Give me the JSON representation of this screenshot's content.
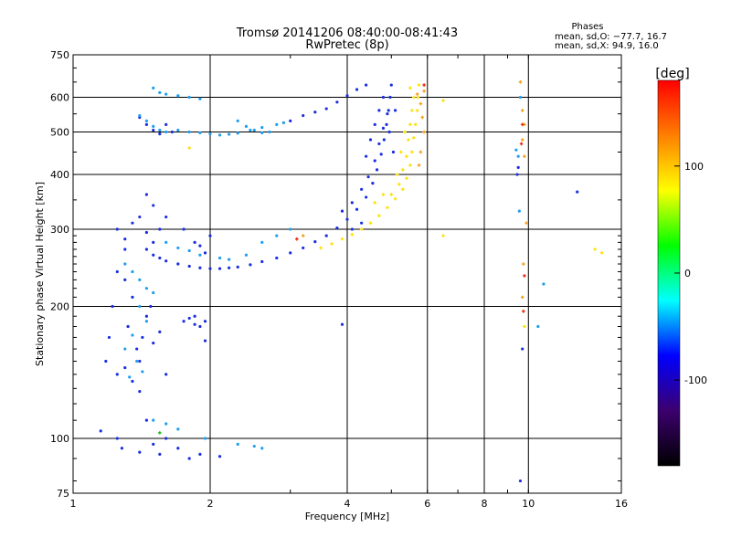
{
  "chart_data": {
    "type": "scatter",
    "title": "Tromsø 20141206 08:40:00-08:41:43",
    "subtitle": "RwPretec (8p)",
    "xlabel": "Frequency [MHz]",
    "ylabel": "Stationary phase Virtual Height [km]",
    "x_scale": "log",
    "y_scale": "log",
    "xlim": [
      1,
      16
    ],
    "ylim": [
      75,
      750
    ],
    "x_ticks": [
      1,
      2,
      4,
      6,
      8,
      10,
      16
    ],
    "x_tick_labels": [
      "1",
      "2",
      "4",
      "6",
      "8",
      "10",
      "16"
    ],
    "y_ticks": [
      75,
      100,
      200,
      300,
      400,
      500,
      600,
      750
    ],
    "y_tick_labels": [
      "75",
      "100",
      "200",
      "300",
      "400",
      "500",
      "600",
      "750"
    ],
    "grid": true,
    "info_heading": "Phases",
    "info_lines": [
      "mean, sd,O: −77.7, 16.7",
      "mean, sd,X:  94.9, 16.0"
    ],
    "colorbar": {
      "label": "[deg]",
      "range": [
        -180,
        180
      ],
      "ticks": [
        100,
        0,
        -100
      ],
      "tick_labels": [
        "100",
        "0",
        "-100"
      ],
      "colors": [
        "#ff0000",
        "#ff7f00",
        "#ffff00",
        "#00ff00",
        "#00ffff",
        "#0000ff",
        "#3c006e",
        "#000000"
      ]
    },
    "series": [
      {
        "mode": "O",
        "color": "#1a2ee0",
        "points": [
          [
            1.45,
            270
          ],
          [
            1.5,
            262
          ],
          [
            1.55,
            258
          ],
          [
            1.6,
            254
          ],
          [
            1.7,
            250
          ],
          [
            1.8,
            247
          ],
          [
            1.9,
            245
          ],
          [
            2.0,
            244
          ],
          [
            2.1,
            244
          ],
          [
            2.2,
            245
          ],
          [
            2.3,
            246
          ],
          [
            2.45,
            249
          ],
          [
            2.6,
            253
          ],
          [
            2.8,
            258
          ],
          [
            3.0,
            265
          ],
          [
            3.2,
            272
          ],
          [
            3.4,
            281
          ],
          [
            3.6,
            290
          ],
          [
            3.8,
            302
          ],
          [
            4.0,
            316
          ],
          [
            4.2,
            333
          ],
          [
            4.4,
            355
          ],
          [
            4.55,
            382
          ],
          [
            4.65,
            410
          ],
          [
            4.75,
            445
          ],
          [
            4.82,
            480
          ],
          [
            4.88,
            520
          ],
          [
            4.93,
            560
          ],
          [
            4.97,
            600
          ],
          [
            5.0,
            640
          ],
          [
            3.9,
            330
          ],
          [
            4.1,
            345
          ],
          [
            4.3,
            370
          ],
          [
            4.45,
            395
          ],
          [
            4.6,
            430
          ],
          [
            4.7,
            470
          ],
          [
            4.8,
            510
          ],
          [
            4.9,
            550
          ],
          [
            4.4,
            440
          ],
          [
            4.5,
            480
          ],
          [
            4.6,
            520
          ],
          [
            4.7,
            560
          ],
          [
            4.8,
            600
          ],
          [
            4.95,
            500
          ],
          [
            5.05,
            450
          ],
          [
            5.1,
            560
          ],
          [
            4.3,
            310
          ],
          [
            4.1,
            300
          ],
          [
            3.0,
            530
          ],
          [
            3.2,
            545
          ],
          [
            3.4,
            555
          ],
          [
            3.6,
            565
          ],
          [
            3.8,
            585
          ],
          [
            4.0,
            605
          ],
          [
            4.2,
            625
          ],
          [
            4.4,
            640
          ],
          [
            1.4,
            540
          ],
          [
            1.45,
            520
          ],
          [
            1.5,
            505
          ],
          [
            1.55,
            495
          ],
          [
            1.6,
            520
          ],
          [
            1.65,
            500
          ],
          [
            1.3,
            230
          ],
          [
            1.35,
            210
          ],
          [
            1.32,
            180
          ],
          [
            1.38,
            160
          ],
          [
            1.4,
            150
          ],
          [
            1.42,
            170
          ],
          [
            1.3,
            145
          ],
          [
            1.35,
            135
          ],
          [
            1.4,
            128
          ],
          [
            1.5,
            165
          ],
          [
            1.55,
            175
          ],
          [
            1.6,
            140
          ],
          [
            1.45,
            190
          ],
          [
            1.48,
            200
          ],
          [
            1.3,
            270
          ],
          [
            1.25,
            240
          ],
          [
            1.22,
            200
          ],
          [
            1.2,
            170
          ],
          [
            1.18,
            150
          ],
          [
            1.25,
            140
          ],
          [
            1.28,
            95
          ],
          [
            1.4,
            93
          ],
          [
            1.5,
            97
          ],
          [
            1.55,
            92
          ],
          [
            1.6,
            100
          ],
          [
            1.7,
            95
          ],
          [
            1.8,
            90
          ],
          [
            1.9,
            92
          ],
          [
            2.1,
            91
          ],
          [
            1.15,
            104
          ],
          [
            1.25,
            100
          ],
          [
            1.45,
            110
          ],
          [
            1.75,
            185
          ],
          [
            1.8,
            188
          ],
          [
            1.85,
            182
          ],
          [
            1.9,
            180
          ],
          [
            1.95,
            185
          ],
          [
            1.85,
            190
          ],
          [
            1.25,
            300
          ],
          [
            1.3,
            285
          ],
          [
            1.35,
            310
          ],
          [
            1.45,
            295
          ],
          [
            1.5,
            280
          ],
          [
            1.55,
            300
          ],
          [
            1.6,
            320
          ],
          [
            1.5,
            340
          ],
          [
            1.45,
            360
          ],
          [
            1.4,
            320
          ],
          [
            1.75,
            300
          ],
          [
            1.85,
            280
          ],
          [
            1.95,
            265
          ],
          [
            2.0,
            290
          ],
          [
            1.9,
            275
          ],
          [
            9.6,
            80
          ],
          [
            9.5,
            415
          ],
          [
            9.45,
            400
          ],
          [
            9.7,
            160
          ],
          [
            12.8,
            365
          ],
          [
            3.9,
            182
          ],
          [
            1.95,
            167
          ]
        ]
      },
      {
        "mode": "O",
        "color": "#1e9ef0",
        "points": [
          [
            1.5,
            630
          ],
          [
            1.55,
            615
          ],
          [
            1.6,
            610
          ],
          [
            1.7,
            605
          ],
          [
            1.8,
            600
          ],
          [
            1.9,
            595
          ],
          [
            1.4,
            545
          ],
          [
            1.45,
            530
          ],
          [
            1.5,
            515
          ],
          [
            1.55,
            505
          ],
          [
            1.6,
            500
          ],
          [
            1.7,
            505
          ],
          [
            1.8,
            500
          ],
          [
            1.9,
            498
          ],
          [
            2.0,
            495
          ],
          [
            2.1,
            492
          ],
          [
            2.2,
            494
          ],
          [
            2.3,
            497
          ],
          [
            2.45,
            505
          ],
          [
            2.6,
            512
          ],
          [
            2.8,
            520
          ],
          [
            2.9,
            525
          ],
          [
            1.3,
            250
          ],
          [
            1.35,
            240
          ],
          [
            1.4,
            230
          ],
          [
            1.45,
            220
          ],
          [
            1.5,
            215
          ],
          [
            1.4,
            200
          ],
          [
            1.45,
            185
          ],
          [
            1.35,
            172
          ],
          [
            1.3,
            160
          ],
          [
            1.38,
            150
          ],
          [
            1.42,
            142
          ],
          [
            1.33,
            138
          ],
          [
            1.5,
            110
          ],
          [
            1.6,
            108
          ],
          [
            1.7,
            105
          ],
          [
            1.95,
            100
          ],
          [
            2.3,
            97
          ],
          [
            2.5,
            96
          ],
          [
            1.6,
            280
          ],
          [
            1.7,
            272
          ],
          [
            1.8,
            268
          ],
          [
            1.9,
            262
          ],
          [
            2.1,
            258
          ],
          [
            2.2,
            256
          ],
          [
            2.4,
            262
          ],
          [
            2.6,
            280
          ],
          [
            2.8,
            290
          ],
          [
            3.0,
            300
          ],
          [
            2.3,
            530
          ],
          [
            2.4,
            515
          ],
          [
            2.5,
            505
          ],
          [
            2.6,
            498
          ],
          [
            2.7,
            500
          ],
          [
            9.5,
            440
          ],
          [
            9.55,
            330
          ],
          [
            9.6,
            600
          ],
          [
            10.5,
            180
          ],
          [
            10.8,
            225
          ],
          [
            9.4,
            455
          ],
          [
            2.6,
            95
          ]
        ]
      },
      {
        "mode": "X",
        "color": "#ffe000",
        "points": [
          [
            3.5,
            272
          ],
          [
            3.7,
            278
          ],
          [
            3.9,
            285
          ],
          [
            4.1,
            292
          ],
          [
            4.3,
            300
          ],
          [
            4.5,
            310
          ],
          [
            4.7,
            322
          ],
          [
            4.9,
            336
          ],
          [
            5.1,
            352
          ],
          [
            5.3,
            370
          ],
          [
            5.4,
            392
          ],
          [
            5.5,
            420
          ],
          [
            5.55,
            450
          ],
          [
            5.6,
            485
          ],
          [
            5.65,
            520
          ],
          [
            5.7,
            560
          ],
          [
            5.72,
            600
          ],
          [
            5.75,
            640
          ],
          [
            5.2,
            380
          ],
          [
            5.3,
            410
          ],
          [
            5.4,
            440
          ],
          [
            5.45,
            480
          ],
          [
            5.5,
            520
          ],
          [
            5.55,
            560
          ],
          [
            5.6,
            600
          ],
          [
            5.0,
            360
          ],
          [
            5.15,
            400
          ],
          [
            5.25,
            450
          ],
          [
            5.35,
            500
          ],
          [
            4.6,
            345
          ],
          [
            4.8,
            360
          ],
          [
            5.5,
            630
          ],
          [
            6.5,
            590
          ],
          [
            6.5,
            290
          ],
          [
            14.0,
            270
          ],
          [
            14.5,
            265
          ],
          [
            9.8,
            180
          ],
          [
            1.8,
            460
          ]
        ]
      },
      {
        "mode": "X",
        "color": "#f4a020",
        "points": [
          [
            5.7,
            610
          ],
          [
            5.8,
            580
          ],
          [
            5.85,
            540
          ],
          [
            5.9,
            500
          ],
          [
            5.8,
            450
          ],
          [
            5.75,
            420
          ],
          [
            5.9,
            620
          ],
          [
            3.2,
            290
          ],
          [
            9.6,
            650
          ],
          [
            9.7,
            560
          ],
          [
            9.8,
            520
          ],
          [
            9.7,
            480
          ],
          [
            9.8,
            440
          ],
          [
            9.75,
            250
          ],
          [
            9.7,
            210
          ],
          [
            9.9,
            310
          ]
        ]
      },
      {
        "mode": "X",
        "color": "#ee2a10",
        "points": [
          [
            9.7,
            520
          ],
          [
            9.65,
            470
          ],
          [
            9.8,
            235
          ],
          [
            9.75,
            195
          ],
          [
            5.9,
            640
          ],
          [
            3.1,
            285
          ]
        ]
      },
      {
        "mode": "X",
        "color": "#22bb22",
        "points": [
          [
            1.55,
            103
          ]
        ]
      }
    ]
  }
}
